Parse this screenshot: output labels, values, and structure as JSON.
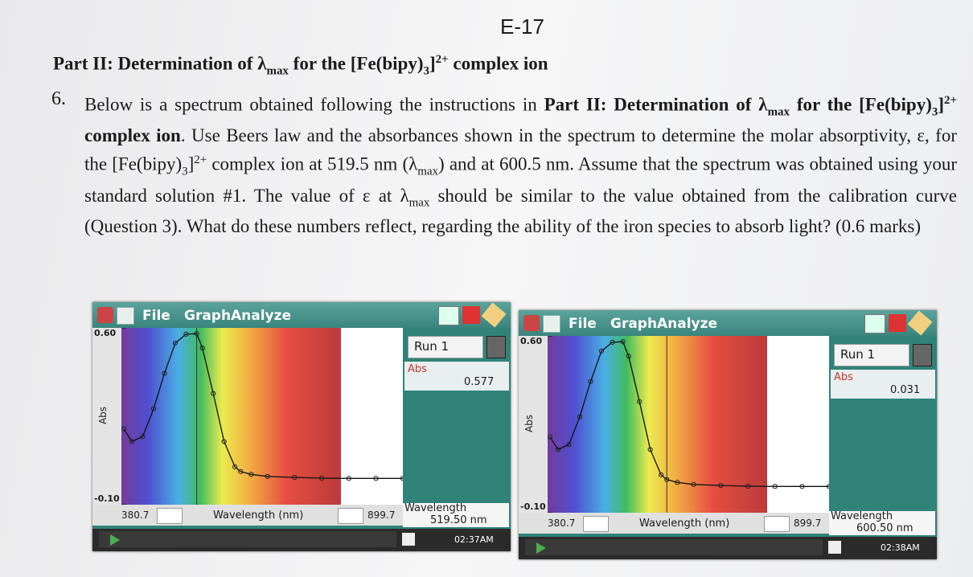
{
  "page_number": "E-17",
  "heading": {
    "segments": [
      {
        "text": "Part II: Determination of λ",
        "style": "bold"
      },
      {
        "text": "max",
        "style": "bold-sub"
      },
      {
        "text": " for the [Fe(bipy)",
        "style": "bold"
      },
      {
        "text": "3",
        "style": "bold-sub"
      },
      {
        "text": "]",
        "style": "bold"
      },
      {
        "text": "2+",
        "style": "bold-sup"
      },
      {
        "text": " complex ion",
        "style": "bold"
      }
    ]
  },
  "question": {
    "number": "6.",
    "segments": [
      "Below is a spectrum obtained following the instructions in ",
      {
        "text": "Part II: Determination of λ",
        "style": "bold"
      },
      {
        "text": "max",
        "style": "bold-sub"
      },
      {
        "text": " for the [Fe(bipy)",
        "style": "bold"
      },
      {
        "text": "3",
        "style": "bold-sub"
      },
      {
        "text": "]",
        "style": "bold"
      },
      {
        "text": "2+",
        "style": "bold-sup"
      },
      {
        "text": " complex ion",
        "style": "bold"
      },
      ". Use Beers law and the absorbances shown in the spectrum to determine the molar absorptivity, ε, for the [Fe(bipy)",
      {
        "text": "3",
        "style": "sub"
      },
      "]",
      {
        "text": "2+",
        "style": "sup"
      },
      " complex ion at 519.5 nm (λ",
      {
        "text": "max",
        "style": "sub"
      },
      ") and at 600.5 nm. Assume that the spectrum was obtained using your standard solution #1. The value of ε at λ",
      {
        "text": "max",
        "style": "sub"
      },
      " should be similar to the value obtained from the calibration curve (Question 3). What do these numbers reflect, regarding the ability of the iron species to absorb light? (0.6 marks)"
    ]
  },
  "spectrum": {
    "x": [
      385,
      400,
      420,
      440,
      460,
      480,
      500,
      519.5,
      530,
      550,
      570,
      590,
      600.5,
      620,
      650,
      700,
      750,
      800,
      850,
      899.7
    ],
    "y": [
      0.2,
      0.15,
      0.17,
      0.28,
      0.42,
      0.54,
      0.575,
      0.577,
      0.52,
      0.34,
      0.15,
      0.05,
      0.031,
      0.02,
      0.012,
      0.008,
      0.005,
      0.004,
      0.004,
      0.004
    ]
  },
  "panels": [
    {
      "menu": [
        "File",
        "Graph",
        "Analyze"
      ],
      "run": "Run 1",
      "sensor": "Abs",
      "reading": 0.577,
      "y_label": "Abs",
      "x_label": "Wavelength (nm)",
      "yticks": [
        {
          "value": -0.1,
          "label": "-0.10"
        },
        {
          "value": 0.6,
          "label": "0.60"
        }
      ],
      "xlim": [
        380.7,
        899.7
      ],
      "cursor_title": "Wavelength",
      "cursor": {
        "value": 519.5,
        "label": "519.50 nm"
      },
      "time": "02:37AM"
    },
    {
      "menu": [
        "File",
        "Graph",
        "Analyze"
      ],
      "run": "Run 1",
      "sensor": "Abs",
      "reading": 0.031,
      "y_label": "Abs",
      "x_label": "Wavelength (nm)",
      "yticks": [
        {
          "value": -0.1,
          "label": "-0.10"
        },
        {
          "value": 0.6,
          "label": "0.60"
        }
      ],
      "xlim": [
        380.7,
        899.7
      ],
      "cursor_title": "Wavelength",
      "cursor": {
        "value": 600.5,
        "label": "600.50 nm"
      },
      "time": "02:38AM"
    }
  ]
}
